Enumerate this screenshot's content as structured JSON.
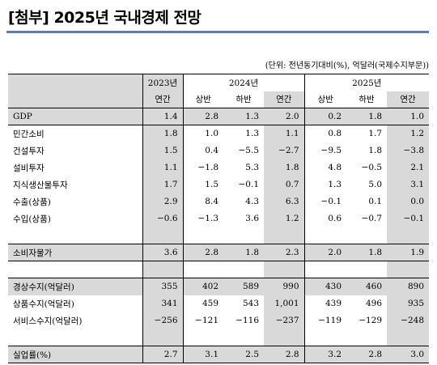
{
  "title": "[첨부] 2025년 국내경제 전망",
  "unit_note": "(단위: 전년동기대비(%), 억달러(국제수지부문))",
  "header": {
    "y2023": "2023년",
    "y2024": "2024년",
    "y2025": "2025년",
    "sub_2023": [
      "연간"
    ],
    "sub_2024": [
      "상반",
      "하반",
      "연간"
    ],
    "sub_2025": [
      "상반",
      "하반",
      "연간"
    ]
  },
  "rows": [
    {
      "label": "GDP",
      "values": [
        "1.4",
        "2.8",
        "1.3",
        "2.0",
        "0.2",
        "1.8",
        "1.0"
      ]
    },
    {
      "label": "민간소비",
      "values": [
        "1.8",
        "1.0",
        "1.3",
        "1.1",
        "0.8",
        "1.7",
        "1.2"
      ]
    },
    {
      "label": "건설투자",
      "values": [
        "1.5",
        "0.4",
        "−5.5",
        "−2.7",
        "−9.5",
        "1.8",
        "−3.8"
      ]
    },
    {
      "label": "설비투자",
      "values": [
        "1.1",
        "−1.8",
        "5.3",
        "1.8",
        "4.8",
        "−0.5",
        "2.1"
      ]
    },
    {
      "label": "지식생산물투자",
      "values": [
        "1.7",
        "1.5",
        "−0.1",
        "0.7",
        "1.3",
        "5.0",
        "3.1"
      ]
    },
    {
      "label": "수출(상품)",
      "values": [
        "2.9",
        "8.4",
        "4.3",
        "6.3",
        "−0.1",
        "0.1",
        "0.0"
      ]
    },
    {
      "label": "수입(상품)",
      "values": [
        "−0.6",
        "−1.3",
        "3.6",
        "1.2",
        "0.6",
        "−0.7",
        "−0.1"
      ]
    },
    {
      "label": "소비자물가",
      "values": [
        "3.6",
        "2.8",
        "1.8",
        "2.3",
        "2.0",
        "1.8",
        "1.9"
      ]
    },
    {
      "label": "경상수지(억달러)",
      "values": [
        "355",
        "402",
        "589",
        "990",
        "430",
        "460",
        "890"
      ]
    },
    {
      "label": "상품수지(억달러)",
      "values": [
        "341",
        "459",
        "543",
        "1,001",
        "439",
        "496",
        "935"
      ]
    },
    {
      "label": "서비스수지(억달러)",
      "values": [
        "−256",
        "−121",
        "−116",
        "−237",
        "−119",
        "−129",
        "−248"
      ]
    },
    {
      "label": "실업률(%)",
      "values": [
        "2.7",
        "3.1",
        "2.5",
        "2.8",
        "3.2",
        "2.8",
        "3.0"
      ]
    }
  ]
}
